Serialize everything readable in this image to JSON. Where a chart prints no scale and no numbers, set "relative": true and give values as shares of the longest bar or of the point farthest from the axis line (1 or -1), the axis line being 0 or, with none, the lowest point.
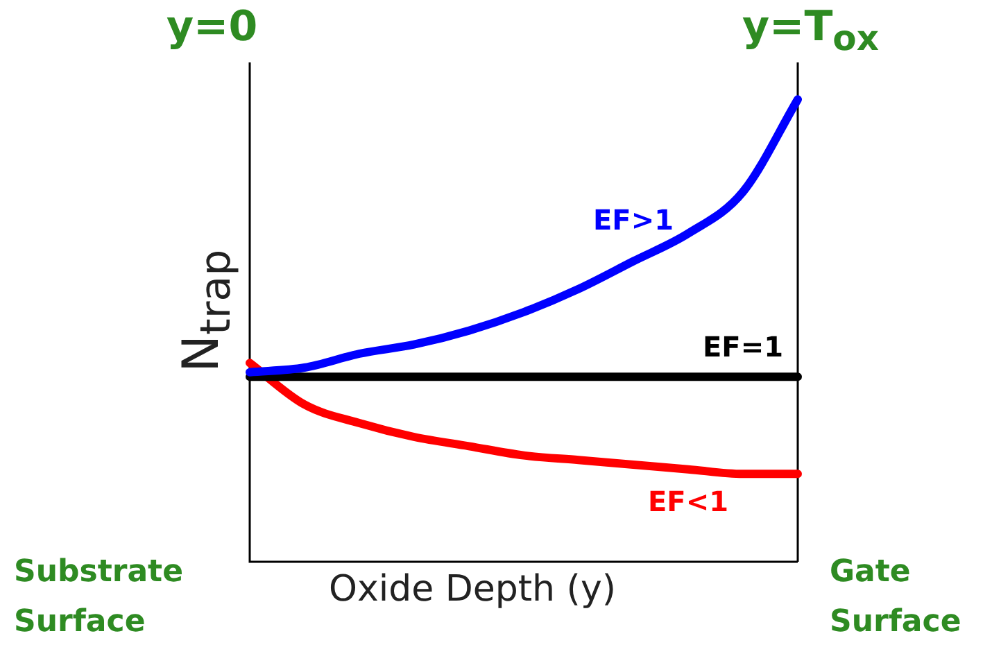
{
  "chart_data": {
    "type": "line",
    "relative": true,
    "xlabel": "Oxide Depth (y)",
    "ylabel": "N$_{trap}$",
    "categories": [
      null,
      null,
      null,
      null,
      null,
      null,
      null,
      null,
      null,
      null,
      null
    ],
    "series": [
      {
        "name": "EF>1",
        "color": "#0000ff",
        "values": [
          0.41,
          0.42,
          0.45,
          0.47,
          0.5,
          0.54,
          0.59,
          0.65,
          0.71,
          0.8,
          1
        ]
      },
      {
        "name": "EF=1",
        "color": "#000000",
        "values": [
          0.4,
          0.4,
          0.4,
          0.4,
          0.4,
          0.4,
          0.4,
          0.4,
          0.4,
          0.4,
          0.4
        ]
      },
      {
        "name": "EF<1",
        "color": "#ff0000",
        "values": [
          0.43,
          0.34,
          0.3,
          0.27,
          0.25,
          0.23,
          0.22,
          0.21,
          0.2,
          0.19,
          0.19
        ]
      }
    ],
    "annotations": [
      "y=0",
      "y=T$_{ox}$",
      "Substrate Surface",
      "Gate Surface"
    ],
    "legend": false,
    "marker": "none",
    "line_style": "solid"
  }
}
